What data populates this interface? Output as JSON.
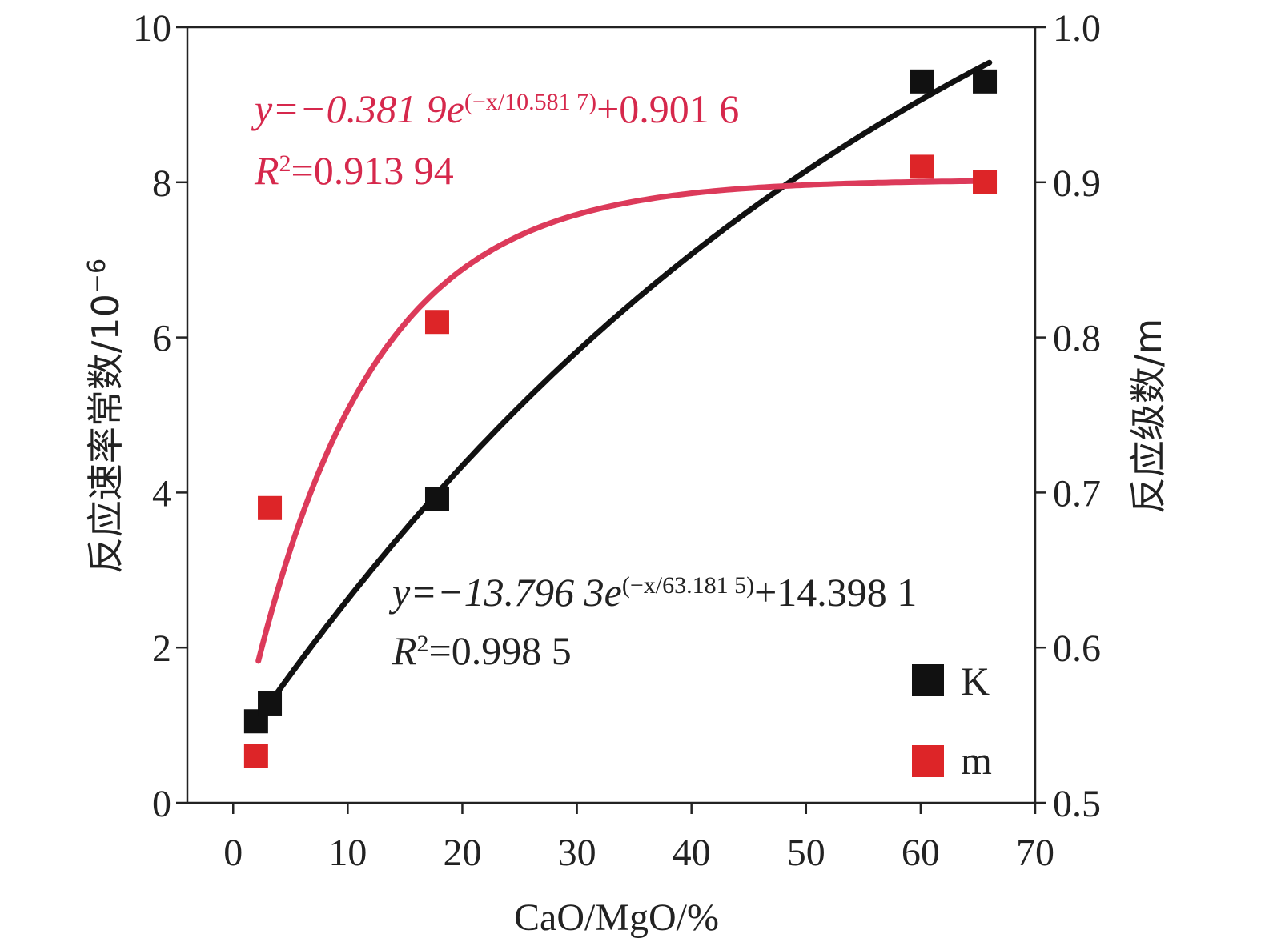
{
  "chart_data": {
    "type": "scatter",
    "xlabel": "CaO/MgO/%",
    "ylabel_left": "反应速率常数/10",
    "ylabel_left_exp": "−6",
    "ylabel_right": "反应级数/m",
    "xlim": [
      -4,
      70
    ],
    "ylim_left": [
      0,
      10
    ],
    "ylim_right": [
      0.5,
      1.0
    ],
    "x_ticks": [
      "0",
      "10",
      "20",
      "30",
      "40",
      "50",
      "60",
      "70"
    ],
    "y_left_ticks": [
      "0",
      "2",
      "4",
      "6",
      "8",
      "10"
    ],
    "y_right_ticks": [
      "0.5",
      "0.6",
      "0.7",
      "0.8",
      "0.9",
      "1.0"
    ],
    "grid": false,
    "legend_position": "bottom-right",
    "colors": {
      "K": "#111111",
      "m": "#dd2528",
      "m_fit": "#dc3a5a",
      "eq_m": "#d6284c",
      "eq_K": "#222222"
    },
    "series": [
      {
        "name": "K",
        "axis": "left",
        "x": [
          2.0,
          3.2,
          17.8,
          60.1,
          65.6
        ],
        "y": [
          1.05,
          1.28,
          3.92,
          9.3,
          9.3
        ],
        "fit": {
          "a": -13.7963,
          "t": 63.1815,
          "c": 14.3981,
          "x_from": 2.5,
          "x_to": 66.0
        }
      },
      {
        "name": "m",
        "axis": "right",
        "x": [
          2.0,
          3.2,
          17.8,
          60.1,
          65.6
        ],
        "y": [
          0.53,
          0.69,
          0.81,
          0.91,
          0.9
        ],
        "fit": {
          "a": -0.3819,
          "t": 10.5817,
          "c": 0.9016,
          "x_from": 2.2,
          "x_to": 65.8
        }
      }
    ],
    "annotations": {
      "m_equation": {
        "pre": "y=−0.381 9e",
        "sup": "(−x/10.581 7)",
        "post": "+0.901 6"
      },
      "m_r2": {
        "r": "R",
        "sup": "2",
        "post": "=0.913 94"
      },
      "k_equation": {
        "pre": "y=−13.796 3e",
        "sup": "(−x/63.181 5)",
        "post": "+14.398 1"
      },
      "k_r2": {
        "r": "R",
        "sup": "2",
        "post": "=0.998 5"
      }
    }
  }
}
